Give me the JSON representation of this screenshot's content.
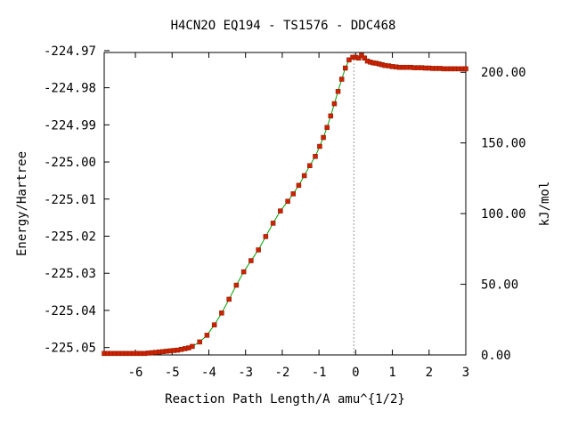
{
  "chart_data": {
    "type": "line",
    "title": "H4CN2O   EQ194 - TS1576 - DDC468",
    "xlabel": "Reaction Path Length/A amu^{1/2}",
    "ylabel": "Energy/Hartree",
    "y2label": "kJ/mol",
    "xlim": [
      -6.85,
      3.0
    ],
    "ylim": [
      -225.052,
      -224.9705
    ],
    "y2lim": [
      0.0,
      214.0
    ],
    "x_ticks": [
      "-6",
      "-5",
      "-4",
      "-3",
      "-2",
      "-1",
      "0",
      "1",
      "2",
      "3"
    ],
    "x_tick_values": [
      -6,
      -5,
      -4,
      -3,
      -2,
      -1,
      0,
      1,
      2,
      3
    ],
    "y_ticks": [
      "-224.97",
      "-224.98",
      "-224.99",
      "-225.00",
      "-225.01",
      "-225.02",
      "-225.03",
      "-225.04",
      "-225.05"
    ],
    "y_tick_values": [
      -224.97,
      -224.98,
      -224.99,
      -225.0,
      -225.01,
      -225.02,
      -225.03,
      -225.04,
      -225.05
    ],
    "y2_ticks": [
      "0.00",
      "50.00",
      "100.00",
      "150.00",
      "200.00"
    ],
    "y2_tick_values": [
      0,
      50,
      100,
      150,
      200
    ],
    "ts_x": -0.05,
    "colors": {
      "line": "#00a000",
      "marker": "#cc2200",
      "ts_line": "#999999"
    },
    "series": [
      {
        "x": [
          -6.85,
          -6.75,
          -6.65,
          -6.55,
          -6.45,
          -6.35,
          -6.25,
          -6.15,
          -6.05,
          -5.95,
          -5.85,
          -5.75,
          -5.65,
          -5.55,
          -5.45,
          -5.35,
          -5.25,
          -5.15,
          -5.05,
          -4.95,
          -4.85,
          -4.75,
          -4.65,
          -4.55,
          -4.45,
          -4.25,
          -4.05,
          -3.85,
          -3.65,
          -3.45,
          -3.25,
          -3.05,
          -2.85,
          -2.65,
          -2.45,
          -2.25,
          -2.05,
          -1.85,
          -1.7,
          -1.55,
          -1.4,
          -1.25,
          -1.1,
          -0.98,
          -0.88,
          -0.78,
          -0.68,
          -0.58,
          -0.48,
          -0.38,
          -0.28,
          -0.18,
          -0.08,
          0.0,
          0.08,
          0.16,
          0.24,
          0.32,
          0.4,
          0.48,
          0.56,
          0.64,
          0.72,
          0.8,
          0.9,
          1.0,
          1.1,
          1.2,
          1.3,
          1.4,
          1.5,
          1.6,
          1.7,
          1.8,
          1.9,
          2.0,
          2.1,
          2.2,
          2.3,
          2.4,
          2.5,
          2.6,
          2.7,
          2.8,
          2.9,
          3.0
        ],
        "y": [
          -225.0516,
          -225.0516,
          -225.0516,
          -225.0516,
          -225.0516,
          -225.0516,
          -225.0516,
          -225.0516,
          -225.0516,
          -225.0516,
          -225.0516,
          -225.0516,
          -225.0515,
          -225.0514,
          -225.0513,
          -225.0512,
          -225.0511,
          -225.051,
          -225.0509,
          -225.0508,
          -225.0507,
          -225.0505,
          -225.0503,
          -225.0501,
          -225.0497,
          -225.0485,
          -225.0467,
          -225.0439,
          -225.0407,
          -225.037,
          -225.0332,
          -225.0296,
          -225.0266,
          -225.0237,
          -225.0201,
          -225.0165,
          -225.0132,
          -225.0106,
          -225.0086,
          -225.0063,
          -225.0037,
          -225.001,
          -224.9985,
          -224.9958,
          -224.9934,
          -224.9907,
          -224.9876,
          -224.9843,
          -224.981,
          -224.9777,
          -224.9747,
          -224.9725,
          -224.9718,
          -224.9718,
          -224.972,
          -224.9713,
          -224.972,
          -224.9728,
          -224.9731,
          -224.9733,
          -224.9734,
          -224.9736,
          -224.9738,
          -224.974,
          -224.9741,
          -224.9743,
          -224.9744,
          -224.9745,
          -224.9745,
          -224.9745,
          -224.9745,
          -224.9746,
          -224.9746,
          -224.9746,
          -224.9747,
          -224.9747,
          -224.9748,
          -224.9748,
          -224.9748,
          -224.9749,
          -224.9749,
          -224.9749,
          -224.9749,
          -224.9749,
          -224.9749,
          -224.9749
        ]
      }
    ]
  }
}
